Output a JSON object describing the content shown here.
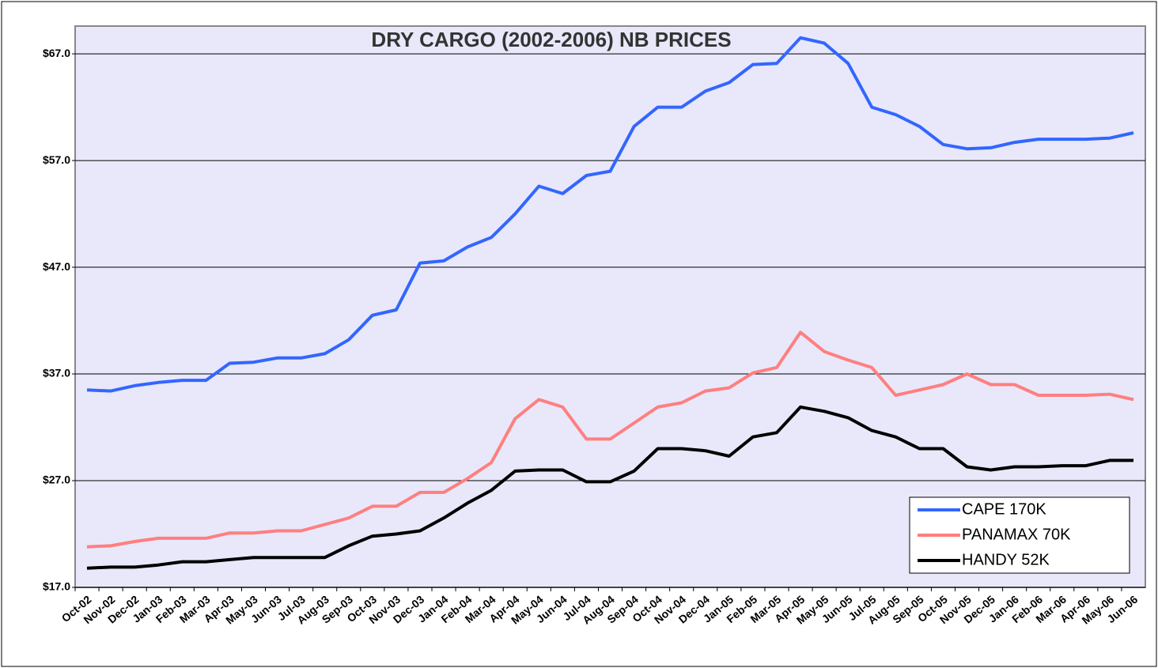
{
  "chart_data": {
    "type": "line",
    "title": "DRY CARGO (2002-2006) NB PRICES",
    "categories": [
      "Oct-02",
      "Nov-02",
      "Dec-02",
      "Jan-03",
      "Feb-03",
      "Mar-03",
      "Apr-03",
      "May-03",
      "Jun-03",
      "Jul-03",
      "Aug-03",
      "Sep-03",
      "Oct-03",
      "Nov-03",
      "Dec-03",
      "Jan-04",
      "Feb-04",
      "Mar-04",
      "Apr-04",
      "May-04",
      "Jun-04",
      "Jul-04",
      "Aug-04",
      "Sep-04",
      "Oct-04",
      "Nov-04",
      "Dec-04",
      "Jan-05",
      "Feb-05",
      "Mar-05",
      "Apr-05",
      "May-05",
      "Jun-05",
      "Jul-05",
      "Aug-05",
      "Sep-05",
      "Oct-05",
      "Nov-05",
      "Dec-05",
      "Jan-06",
      "Feb-06",
      "Mar-06",
      "Apr-06",
      "May-06",
      "Jun-06"
    ],
    "series": [
      {
        "name": "CAPE 170K",
        "color": "#3366ff",
        "values": [
          35.5,
          35.4,
          35.9,
          36.2,
          36.4,
          36.4,
          38.0,
          38.1,
          38.5,
          38.5,
          38.9,
          40.2,
          42.5,
          43.0,
          47.4,
          47.6,
          48.9,
          49.8,
          52.0,
          54.6,
          53.9,
          55.6,
          56.0,
          60.2,
          62.0,
          62.0,
          63.5,
          64.3,
          66.0,
          66.1,
          68.5,
          68.0,
          66.1,
          62.0,
          61.3,
          60.2,
          58.5,
          58.1,
          58.2,
          58.7,
          59.0,
          59.0,
          59.0,
          59.1,
          59.6
        ]
      },
      {
        "name": "PANAMAX 70K",
        "color": "#ff7f7f",
        "values": [
          20.8,
          20.9,
          21.3,
          21.6,
          21.6,
          21.6,
          22.1,
          22.1,
          22.3,
          22.3,
          22.9,
          23.5,
          24.6,
          24.6,
          25.9,
          25.9,
          27.2,
          28.7,
          32.8,
          34.6,
          33.9,
          30.9,
          30.9,
          32.4,
          33.9,
          34.3,
          35.4,
          35.7,
          37.1,
          37.6,
          40.9,
          39.1,
          38.3,
          37.6,
          35.0,
          35.5,
          36.0,
          37.0,
          36.0,
          36.0,
          35.0,
          35.0,
          35.0,
          35.1,
          34.6
        ]
      },
      {
        "name": "HANDY 52K",
        "color": "#000000",
        "values": [
          18.8,
          18.9,
          18.9,
          19.1,
          19.4,
          19.4,
          19.6,
          19.8,
          19.8,
          19.8,
          19.8,
          20.9,
          21.8,
          22.0,
          22.3,
          23.5,
          24.9,
          26.1,
          27.9,
          28.0,
          28.0,
          26.9,
          26.9,
          27.9,
          30.0,
          30.0,
          29.8,
          29.3,
          31.1,
          31.5,
          33.9,
          33.5,
          32.9,
          31.7,
          31.1,
          30.0,
          30.0,
          28.3,
          28.0,
          28.3,
          28.3,
          28.4,
          28.4,
          28.9,
          28.9
        ]
      }
    ],
    "ylim": [
      17,
      69.6
    ],
    "yticks": [
      {
        "value": 17,
        "label": "$17.0"
      },
      {
        "value": 27,
        "label": "$27.0"
      },
      {
        "value": 37,
        "label": "$37.0"
      },
      {
        "value": 47,
        "label": "$47.0"
      },
      {
        "value": 57,
        "label": "$57.0"
      },
      {
        "value": 67,
        "label": "$67.0"
      }
    ],
    "grid": true,
    "legend": "lower right"
  }
}
